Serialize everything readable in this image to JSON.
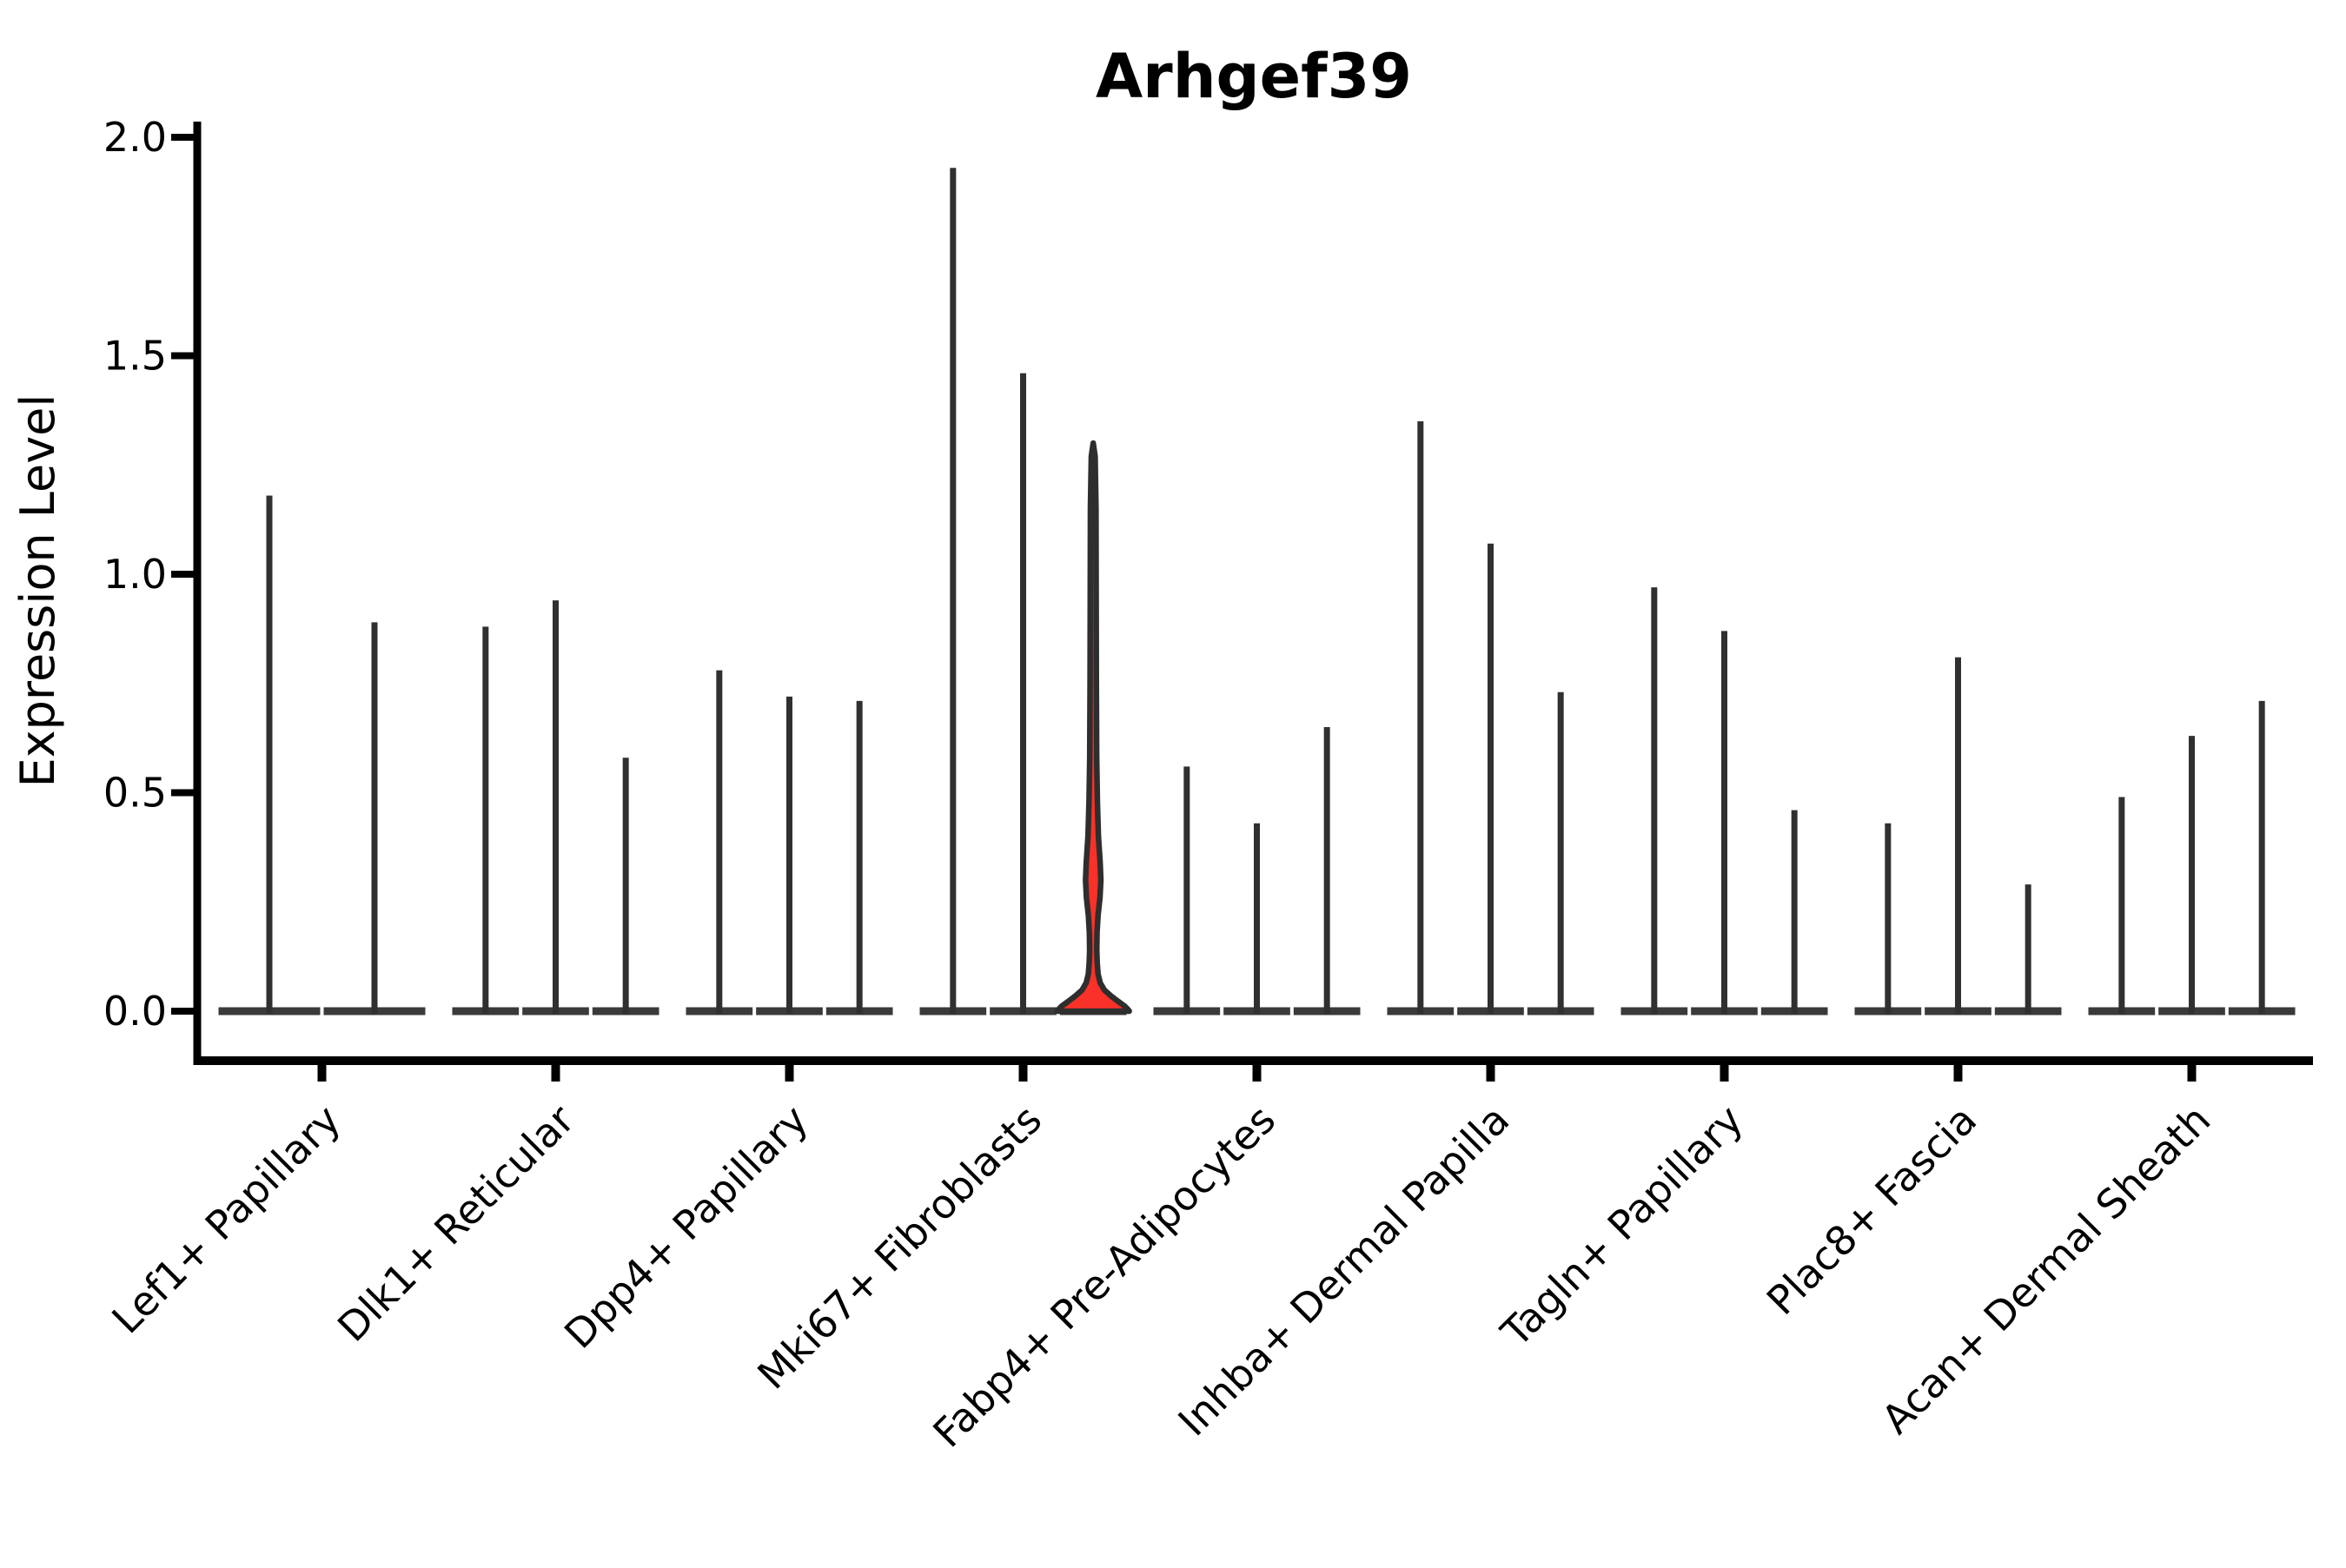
{
  "figure": {
    "background": "#ffffff"
  },
  "chart_data": {
    "type": "violin",
    "title": "Arhgef39",
    "ylabel": "Expression Level",
    "xlabel": "",
    "ylim": [
      0,
      2.0
    ],
    "yticks": [
      0,
      0.5,
      1.0,
      1.5,
      2.0
    ],
    "ytick_labels": [
      "0.0",
      "0.5",
      "1.0",
      "1.5",
      "2.0"
    ],
    "grid": false,
    "legend": "none",
    "categories": [
      "Lef1+ Papillary",
      "Dlk1+ Reticular",
      "Dpp4+ Papillary",
      "Mki67+ Fibroblasts",
      "Fabp4+ Pre-Adipocytes",
      "Inhba+ Dermal Papilla",
      "Tagln+ Papillary",
      "Plac8+ Fascia",
      "Acan+ Dermal Sheath"
    ],
    "groups": [
      {
        "category": "Lef1+ Papillary",
        "violins": [
          {
            "max": 1.18
          },
          {
            "max": 0.89
          }
        ]
      },
      {
        "category": "Dlk1+ Reticular",
        "violins": [
          {
            "max": 0.88
          },
          {
            "max": 0.94
          },
          {
            "max": 0.58
          }
        ]
      },
      {
        "category": "Dpp4+ Papillary",
        "violins": [
          {
            "max": 0.78
          },
          {
            "max": 0.72
          },
          {
            "max": 0.71
          }
        ]
      },
      {
        "category": "Mki67+ Fibroblasts",
        "violins": [
          {
            "max": 1.93
          },
          {
            "max": 1.46
          },
          {
            "max": 1.3,
            "highlight": true
          }
        ]
      },
      {
        "category": "Fabp4+ Pre-Adipocytes",
        "violins": [
          {
            "max": 0.56
          },
          {
            "max": 0.43
          },
          {
            "max": 0.65
          }
        ]
      },
      {
        "category": "Inhba+ Dermal Papilla",
        "violins": [
          {
            "max": 1.35
          },
          {
            "max": 1.07
          },
          {
            "max": 0.73
          }
        ]
      },
      {
        "category": "Tagln+ Papillary",
        "violins": [
          {
            "max": 0.97
          },
          {
            "max": 0.87
          },
          {
            "max": 0.46
          }
        ]
      },
      {
        "category": "Plac8+ Fascia",
        "violins": [
          {
            "max": 0.43
          },
          {
            "max": 0.81
          },
          {
            "max": 0.29
          }
        ]
      },
      {
        "category": "Acan+ Dermal Sheath",
        "violins": [
          {
            "max": 0.49
          },
          {
            "max": 0.63
          },
          {
            "max": 0.71
          }
        ]
      }
    ],
    "highlight_profile": [
      [
        1.3,
        0.0
      ],
      [
        1.27,
        2.2
      ],
      [
        1.15,
        3.2
      ],
      [
        0.95,
        3.4
      ],
      [
        0.75,
        3.6
      ],
      [
        0.58,
        4.0
      ],
      [
        0.48,
        4.8
      ],
      [
        0.4,
        6.0
      ],
      [
        0.34,
        8.0
      ],
      [
        0.3,
        8.8
      ],
      [
        0.26,
        7.8
      ],
      [
        0.22,
        5.6
      ],
      [
        0.18,
        4.4
      ],
      [
        0.14,
        4.1
      ],
      [
        0.11,
        4.6
      ],
      [
        0.085,
        5.6
      ],
      [
        0.065,
        8.0
      ],
      [
        0.048,
        13.0
      ],
      [
        0.034,
        21.0
      ],
      [
        0.022,
        29.0
      ],
      [
        0.012,
        36.0
      ],
      [
        0.004,
        40.0
      ],
      [
        0.0,
        41.5
      ]
    ],
    "colors": {
      "axis": "#000000",
      "spike": "#303030",
      "baseline": "#3a3a3a",
      "outline": "#2e2e2e",
      "highlight_fill": "#f93128",
      "text": "#000000",
      "background": "#ffffff"
    }
  }
}
